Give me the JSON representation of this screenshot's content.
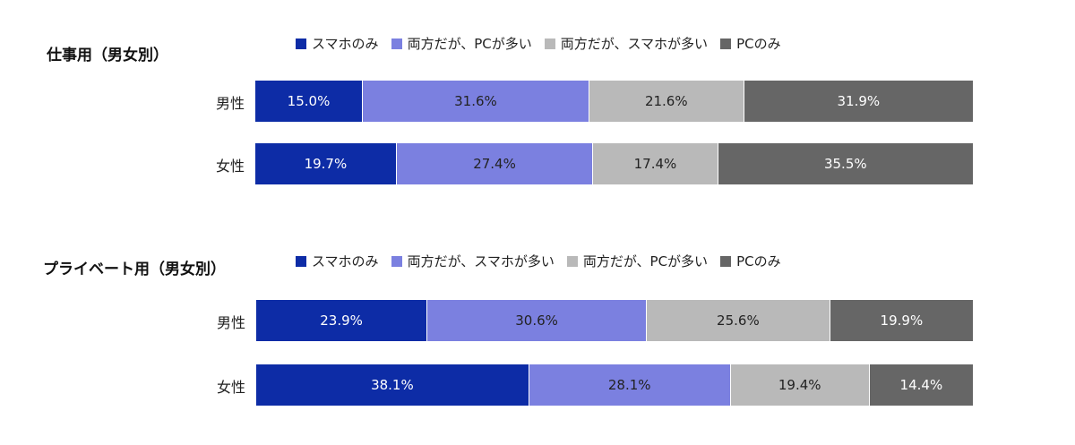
{
  "chart_data": [
    {
      "type": "bar",
      "orientation": "horizontal-stacked-100",
      "title": "仕事用（男女別）",
      "categories": [
        "男性",
        "女性"
      ],
      "series": [
        {
          "name": "スマホのみ",
          "color": "#0D2CA6",
          "text_color": "#ffffff",
          "values": [
            15.0,
            19.7
          ]
        },
        {
          "name": "両方だが、PCが多い",
          "color": "#7B80E0",
          "text_color": "#222222",
          "values": [
            31.6,
            27.4
          ]
        },
        {
          "name": "両方だが、スマホが多い",
          "color": "#B9B9B9",
          "text_color": "#222222",
          "values": [
            21.6,
            17.4
          ]
        },
        {
          "name": "PCのみ",
          "color": "#666666",
          "text_color": "#ffffff",
          "values": [
            31.9,
            35.5
          ]
        }
      ],
      "value_suffix": "%",
      "legend": "top"
    },
    {
      "type": "bar",
      "orientation": "horizontal-stacked-100",
      "title": "プライベート用（男女別）",
      "categories": [
        "男性",
        "女性"
      ],
      "series": [
        {
          "name": "スマホのみ",
          "color": "#0D2CA6",
          "text_color": "#ffffff",
          "values": [
            23.9,
            38.1
          ]
        },
        {
          "name": "両方だが、スマホが多い",
          "color": "#7B80E0",
          "text_color": "#222222",
          "values": [
            30.6,
            28.1
          ]
        },
        {
          "name": "両方だが、PCが多い",
          "color": "#B9B9B9",
          "text_color": "#222222",
          "values": [
            25.6,
            19.4
          ]
        },
        {
          "name": "PCのみ",
          "color": "#666666",
          "text_color": "#ffffff",
          "values": [
            19.9,
            14.4
          ]
        }
      ],
      "value_suffix": "%",
      "legend": "top"
    }
  ]
}
